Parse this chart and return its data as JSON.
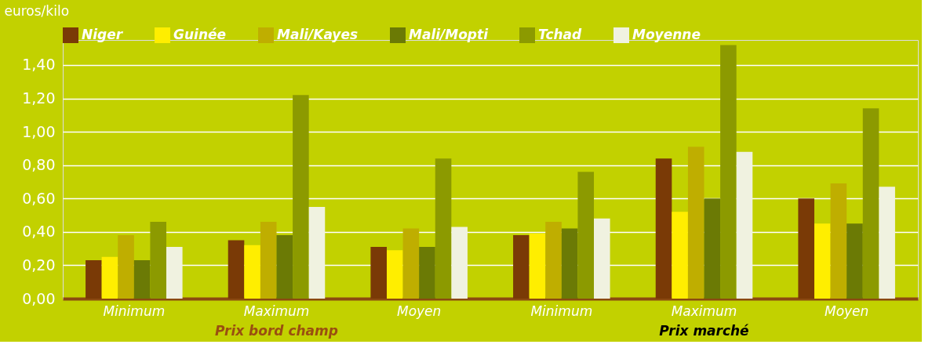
{
  "chart_data": {
    "type": "bar",
    "ylabel": "euros/kilo",
    "categories": [
      "Minimum",
      "Maximum",
      "Moyen",
      "Minimum",
      "Maximum",
      "Moyen"
    ],
    "series": [
      {
        "name": "Niger",
        "color": "#7a3a06",
        "values": [
          0.23,
          0.35,
          0.31,
          0.38,
          0.84,
          0.6
        ]
      },
      {
        "name": "Guinée",
        "color": "#ffee00",
        "values": [
          0.25,
          0.32,
          0.29,
          0.39,
          0.52,
          0.45
        ]
      },
      {
        "name": "Mali/Kayes",
        "color": "#bfae00",
        "values": [
          0.38,
          0.46,
          0.42,
          0.46,
          0.91,
          0.69
        ]
      },
      {
        "name": "Mali/Mopti",
        "color": "#6b7a05",
        "values": [
          0.23,
          0.38,
          0.31,
          0.42,
          0.6,
          0.45
        ]
      },
      {
        "name": "Tchad",
        "color": "#8c9a00",
        "values": [
          0.46,
          1.22,
          0.84,
          0.76,
          1.52,
          1.14
        ]
      },
      {
        "name": "Moyenne",
        "color": "#f0f2e0",
        "values": [
          0.31,
          0.55,
          0.43,
          0.48,
          0.88,
          0.67
        ]
      }
    ],
    "ylim": [
      0,
      1.55
    ],
    "yticks": [
      {
        "value": 0,
        "label": "0,00"
      },
      {
        "value": 0.2,
        "label": "0,20"
      },
      {
        "value": 0.4,
        "label": "0,40"
      },
      {
        "value": 0.6,
        "label": "0,60"
      },
      {
        "value": 0.8,
        "label": "0,80"
      },
      {
        "value": 1.0,
        "label": "1,00"
      },
      {
        "value": 1.2,
        "label": "1,20"
      },
      {
        "value": 1.4,
        "label": "1,40"
      }
    ],
    "grid": "y",
    "legend": "top",
    "annotations": [
      "Prix bord champ",
      "Prix marché"
    ]
  }
}
